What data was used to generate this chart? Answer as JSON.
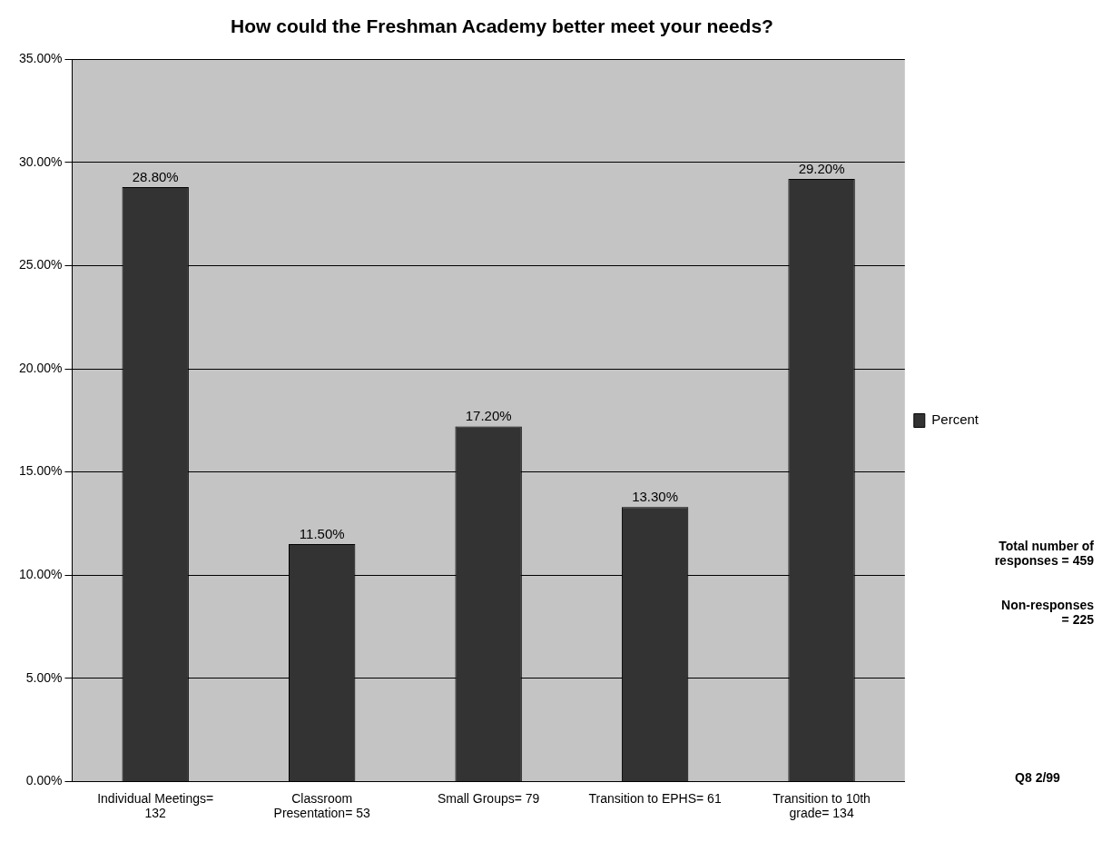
{
  "chart_data": {
    "type": "bar",
    "title": "How could the Freshman Academy better meet your needs?",
    "categories": [
      "Individual Meetings= 132",
      "Classroom Presentation= 53",
      "Small Groups= 79",
      "Transition to EPHS= 61",
      "Transition to 10th grade= 134"
    ],
    "series": [
      {
        "name": "Percent",
        "color": "#333333",
        "values": [
          28.8,
          11.5,
          17.2,
          13.3,
          29.2
        ],
        "value_labels": [
          "28.80%",
          "11.50%",
          "17.20%",
          "13.30%",
          "29.20%"
        ]
      }
    ],
    "ylim": [
      0,
      35
    ],
    "yticks": [
      {
        "value": 0,
        "label": "0.00%"
      },
      {
        "value": 5,
        "label": "5.00%"
      },
      {
        "value": 10,
        "label": "10.00%"
      },
      {
        "value": 15,
        "label": "15.00%"
      },
      {
        "value": 20,
        "label": "20.00%"
      },
      {
        "value": 25,
        "label": "25.00%"
      },
      {
        "value": 30,
        "label": "30.00%"
      },
      {
        "value": 35,
        "label": "35.00%"
      }
    ],
    "grid": "y",
    "legend": "right",
    "annotations": [
      "Total number of responses = 459",
      "Non-responses = 225",
      "Q8 2/99"
    ]
  }
}
